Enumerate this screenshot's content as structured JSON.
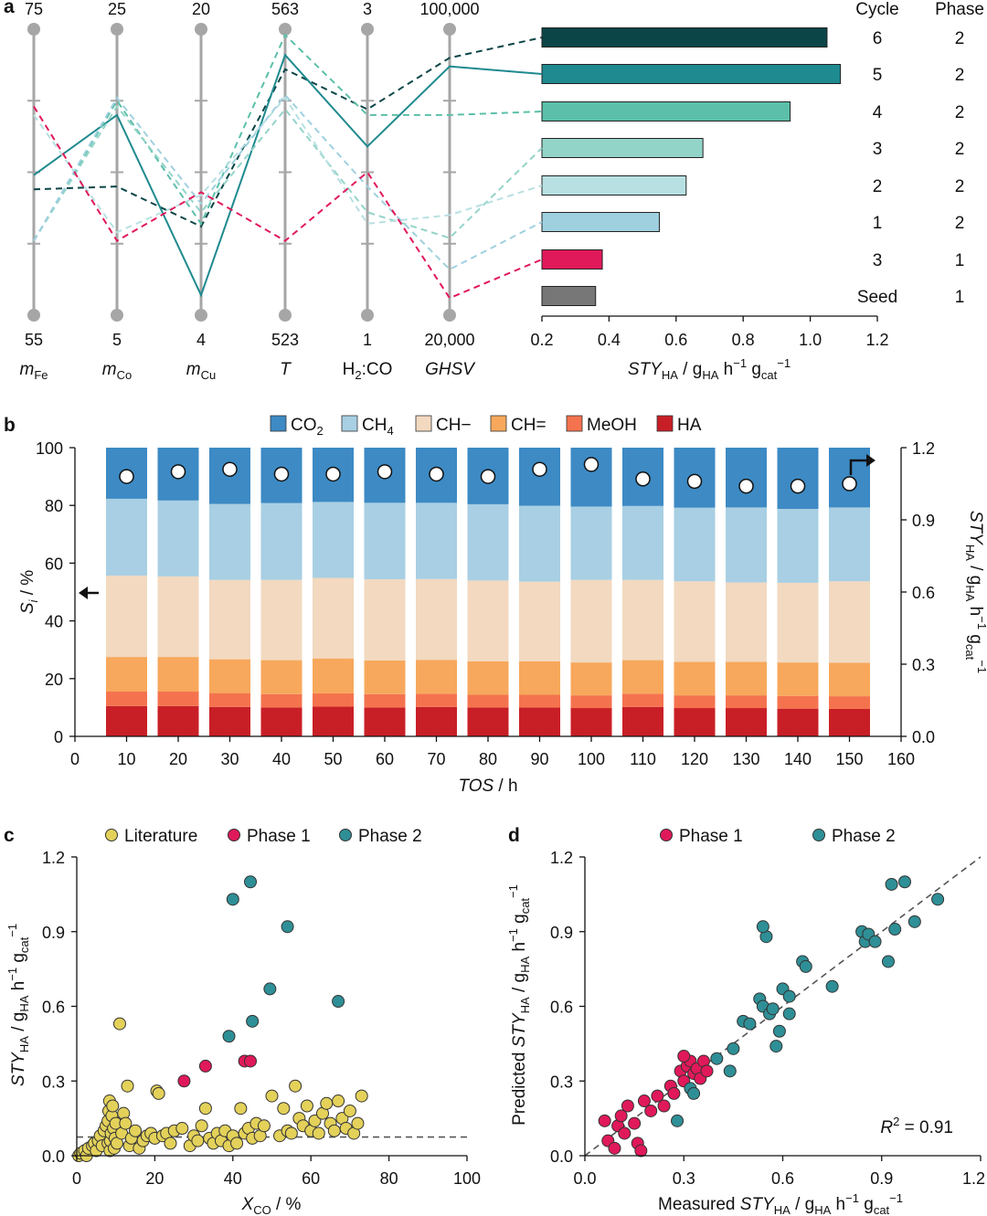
{
  "colors": {
    "axis_gray": "#a6a6a6",
    "phase1": "#e0195a",
    "teal_dark": "#2f8f96",
    "literature": "#e3d15a",
    "dashed_fit": "#555555",
    "seg_CO2": "#3d8ac4",
    "seg_CH4": "#a8cfe3",
    "seg_CHsat": "#f2d9c0",
    "seg_CHunsat": "#f7a85c",
    "seg_MeOH": "#f4734e",
    "seg_HA": "#c81f26"
  },
  "chart_data": [
    {
      "panel": "a",
      "type": "parallel-coordinates+bar",
      "panel_label": "a",
      "axes": [
        {
          "name": "m_Fe",
          "label_main": "m",
          "label_sub": "Fe",
          "italic": true,
          "top": "75",
          "bottom": "55",
          "min": 55,
          "max": 75
        },
        {
          "name": "m_Co",
          "label_main": "m",
          "label_sub": "Co",
          "italic": true,
          "top": "25",
          "bottom": "5",
          "min": 5,
          "max": 25
        },
        {
          "name": "m_Cu",
          "label_main": "m",
          "label_sub": "Cu",
          "italic": true,
          "top": "20",
          "bottom": "4",
          "min": 4,
          "max": 20
        },
        {
          "name": "T",
          "label_main": "T",
          "label_sub": "",
          "italic": true,
          "top": "563",
          "bottom": "523",
          "min": 523,
          "max": 563
        },
        {
          "name": "H2:CO",
          "label_main": "H",
          "label_sub": "2",
          "label_tail": ":CO",
          "italic": false,
          "top": "3",
          "bottom": "1",
          "min": 1,
          "max": 3
        },
        {
          "name": "GHSV",
          "label_main": "GHSV",
          "label_sub": "",
          "italic": true,
          "top": "100,000",
          "bottom": "20,000",
          "min": 20000,
          "max": 100000
        }
      ],
      "lines": [
        {
          "cycle": "6",
          "phase": "2",
          "sty": 1.05,
          "color": "#0c4547",
          "dash": true,
          "norm": [
            0.44,
            0.45,
            0.31,
            0.86,
            0.72,
            0.9
          ]
        },
        {
          "cycle": "5",
          "phase": "2",
          "sty": 1.09,
          "color": "#1f8a8f",
          "dash": false,
          "norm": [
            0.49,
            0.7,
            0.07,
            0.91,
            0.59,
            0.87
          ]
        },
        {
          "cycle": "4",
          "phase": "2",
          "sty": 0.94,
          "color": "#5bbfa9",
          "dash": true,
          "norm": [
            0.26,
            0.75,
            0.32,
            0.98,
            0.7,
            0.7
          ]
        },
        {
          "cycle": "3",
          "phase": "2",
          "sty": 0.68,
          "color": "#93d4c8",
          "dash": true,
          "norm": [
            0.26,
            0.73,
            0.36,
            0.72,
            0.36,
            0.27
          ]
        },
        {
          "cycle": "2",
          "phase": "2",
          "sty": 0.63,
          "color": "#b8e0e2",
          "dash": true,
          "norm": [
            0.7,
            0.29,
            0.42,
            0.76,
            0.32,
            0.35
          ]
        },
        {
          "cycle": "1",
          "phase": "2",
          "sty": 0.55,
          "color": "#9fd0e0",
          "dash": true,
          "norm": [
            0.26,
            0.76,
            0.39,
            0.77,
            0.45,
            0.16
          ]
        },
        {
          "cycle": "3",
          "phase": "1",
          "sty": 0.38,
          "color": "#e0195a",
          "dash": true,
          "norm": [
            0.73,
            0.26,
            0.43,
            0.26,
            0.5,
            0.06
          ]
        },
        {
          "cycle": "Seed",
          "phase": "1",
          "sty": 0.36,
          "color": "#777777",
          "dash": false,
          "norm": null
        }
      ],
      "bar_xlim": [
        0.2,
        1.2
      ],
      "bar_xticks": [
        "0.2",
        "0.4",
        "0.6",
        "0.8",
        "1.0",
        "1.2"
      ],
      "bar_xlabel": {
        "main": "STY",
        "sub": "HA",
        "rest": " / g",
        "sub2": "HA",
        "rest2": " h",
        "sup": "−1",
        "rest3": " g",
        "sub3": "cat",
        "sup2": "−1"
      },
      "col_cycle": "Cycle",
      "col_phase": "Phase"
    },
    {
      "panel": "b",
      "type": "stacked-bar+scatter",
      "panel_label": "b",
      "legend": [
        {
          "key": "CO2",
          "main": "CO",
          "sub": "2",
          "color": "#3d8ac4"
        },
        {
          "key": "CH4",
          "main": "CH",
          "sub": "4",
          "color": "#a8cfe3"
        },
        {
          "key": "CHsat",
          "main": "CH−",
          "sub": "",
          "color": "#f2d9c0"
        },
        {
          "key": "CHunsat",
          "main": "CH=",
          "sub": "",
          "color": "#f7a85c"
        },
        {
          "key": "MeOH",
          "main": "MeOH",
          "sub": "",
          "color": "#f4734e"
        },
        {
          "key": "HA",
          "main": "HA",
          "sub": "",
          "color": "#c81f26"
        }
      ],
      "x": [
        10,
        20,
        30,
        40,
        50,
        60,
        70,
        80,
        90,
        100,
        110,
        120,
        130,
        140,
        150
      ],
      "xlim": [
        0,
        160
      ],
      "xticks": [
        "0",
        "10",
        "20",
        "30",
        "40",
        "50",
        "60",
        "70",
        "80",
        "90",
        "100",
        "110",
        "120",
        "130",
        "140",
        "150",
        "160"
      ],
      "ylim_left": [
        0,
        100
      ],
      "yticks_left": [
        "0",
        "20",
        "40",
        "60",
        "80",
        "100"
      ],
      "ylim_right": [
        0,
        1.2
      ],
      "yticks_right": [
        "0.0",
        "0.3",
        "0.6",
        "0.9",
        "1.2"
      ],
      "xlabel": {
        "main": "TOS",
        "rest": " / h"
      },
      "ylabel_left": {
        "main": "S",
        "sub": "i",
        "rest": " / %"
      },
      "ylabel_right": {
        "main": "STY",
        "sub": "HA",
        "rest": " / g",
        "sub2": "HA",
        "rest2": " h",
        "sup": "−1",
        "rest3": " g",
        "sub3": "cat",
        "sup2": "−1"
      },
      "series": [
        {
          "name": "HA",
          "values": [
            10.5,
            10.5,
            10.2,
            10.0,
            10.3,
            10.0,
            10.2,
            10.0,
            10.0,
            9.8,
            10.2,
            9.8,
            9.8,
            9.6,
            9.5
          ]
        },
        {
          "name": "MeOH",
          "values": [
            5.0,
            5.0,
            4.8,
            4.6,
            4.6,
            4.6,
            4.6,
            4.4,
            4.4,
            4.4,
            4.6,
            4.4,
            4.4,
            4.4,
            4.4
          ]
        },
        {
          "name": "CH=",
          "values": [
            12.0,
            12.0,
            11.7,
            11.8,
            12.1,
            11.7,
            11.7,
            11.6,
            11.6,
            11.4,
            11.6,
            11.6,
            11.6,
            11.6,
            11.6
          ]
        },
        {
          "name": "CH−",
          "values": [
            28.2,
            27.9,
            27.5,
            27.8,
            27.9,
            28.1,
            28.0,
            28.0,
            27.6,
            28.6,
            27.8,
            27.9,
            27.5,
            27.6,
            28.2
          ]
        },
        {
          "name": "CH4",
          "values": [
            26.6,
            26.3,
            26.3,
            26.6,
            26.3,
            26.5,
            26.4,
            26.4,
            26.3,
            25.4,
            25.6,
            25.5,
            26.0,
            25.6,
            25.6
          ]
        },
        {
          "name": "CO2",
          "values": [
            17.7,
            18.3,
            19.5,
            19.2,
            18.8,
            19.1,
            19.1,
            19.6,
            20.1,
            20.4,
            20.2,
            20.8,
            20.7,
            21.2,
            20.7
          ]
        }
      ],
      "sty": [
        1.08,
        1.1,
        1.11,
        1.09,
        1.09,
        1.1,
        1.09,
        1.08,
        1.11,
        1.13,
        1.07,
        1.06,
        1.04,
        1.04,
        1.05
      ]
    },
    {
      "panel": "c",
      "type": "scatter",
      "panel_label": "c",
      "legend": [
        "Literature",
        "Phase 1",
        "Phase 2"
      ],
      "xlim": [
        0,
        100
      ],
      "xticks": [
        "0",
        "20",
        "40",
        "60",
        "80",
        "100"
      ],
      "ylim": [
        0,
        1.2
      ],
      "yticks": [
        "0.0",
        "0.3",
        "0.6",
        "0.9",
        "1.2"
      ],
      "xlabel": {
        "main": "X",
        "sub": "CO",
        "rest": " / %"
      },
      "ylabel": {
        "main": "STY",
        "sub": "HA",
        "rest": " / g",
        "sub2": "HA",
        "rest2": " h",
        "sup": "−1",
        "rest3": " g",
        "sub3": "cat",
        "sup2": "−1"
      },
      "hline": 0.075,
      "phase1": [
        [
          27.5,
          0.3
        ],
        [
          33,
          0.36
        ],
        [
          43,
          0.38
        ],
        [
          44.5,
          0.38
        ]
      ],
      "phase2": [
        [
          39,
          0.48
        ],
        [
          40,
          1.03
        ],
        [
          44.5,
          1.1
        ],
        [
          45,
          0.54
        ],
        [
          54,
          0.92
        ],
        [
          49.5,
          0.67
        ],
        [
          67,
          0.62
        ]
      ],
      "literature": [
        [
          0.5,
          0.0
        ],
        [
          1,
          0.01
        ],
        [
          2,
          0.02
        ],
        [
          2.5,
          0.0
        ],
        [
          3,
          0.03
        ],
        [
          4,
          0.04
        ],
        [
          4.5,
          0.05
        ],
        [
          5,
          0.02
        ],
        [
          5.5,
          0.06
        ],
        [
          6,
          0.08
        ],
        [
          6.5,
          0.04
        ],
        [
          7,
          0.1
        ],
        [
          7.5,
          0.12
        ],
        [
          8,
          0.05
        ],
        [
          8,
          0.14
        ],
        [
          8.2,
          0.18
        ],
        [
          8.4,
          0.22
        ],
        [
          8.5,
          0.02
        ],
        [
          8.6,
          0.06
        ],
        [
          8.8,
          0.09
        ],
        [
          9,
          0.16
        ],
        [
          9.2,
          0.2
        ],
        [
          9.4,
          0.11
        ],
        [
          9.6,
          0.03
        ],
        [
          9.8,
          0.07
        ],
        [
          10,
          0.13
        ],
        [
          10.3,
          0.05
        ],
        [
          11,
          0.53
        ],
        [
          11.5,
          0.09
        ],
        [
          12,
          0.17
        ],
        [
          12.5,
          0.13
        ],
        [
          13,
          0.28
        ],
        [
          13.5,
          0.04
        ],
        [
          14,
          0.07
        ],
        [
          15,
          0.1
        ],
        [
          16,
          0.03
        ],
        [
          17,
          0.06
        ],
        [
          18,
          0.08
        ],
        [
          19,
          0.09
        ],
        [
          20,
          0.07
        ],
        [
          20.5,
          0.26
        ],
        [
          21,
          0.25
        ],
        [
          22,
          0.08
        ],
        [
          23,
          0.09
        ],
        [
          24,
          0.05
        ],
        [
          25,
          0.1
        ],
        [
          27,
          0.11
        ],
        [
          29,
          0.04
        ],
        [
          30,
          0.08
        ],
        [
          31,
          0.06
        ],
        [
          32,
          0.12
        ],
        [
          33,
          0.19
        ],
        [
          34,
          0.07
        ],
        [
          35,
          0.05
        ],
        [
          36,
          0.09
        ],
        [
          37,
          0.06
        ],
        [
          38,
          0.1
        ],
        [
          39,
          0.04
        ],
        [
          40,
          0.08
        ],
        [
          41,
          0.05
        ],
        [
          42,
          0.19
        ],
        [
          43,
          0.09
        ],
        [
          44,
          0.11
        ],
        [
          45,
          0.07
        ],
        [
          46,
          0.13
        ],
        [
          47,
          0.08
        ],
        [
          48,
          0.12
        ],
        [
          50,
          0.24
        ],
        [
          52,
          0.08
        ],
        [
          53,
          0.19
        ],
        [
          54,
          0.1
        ],
        [
          55,
          0.09
        ],
        [
          56,
          0.28
        ],
        [
          57,
          0.15
        ],
        [
          58,
          0.12
        ],
        [
          59,
          0.2
        ],
        [
          60,
          0.1
        ],
        [
          61,
          0.14
        ],
        [
          62,
          0.09
        ],
        [
          63,
          0.17
        ],
        [
          64,
          0.21
        ],
        [
          65,
          0.13
        ],
        [
          66,
          0.1
        ],
        [
          67,
          0.22
        ],
        [
          68,
          0.15
        ],
        [
          69,
          0.11
        ],
        [
          70,
          0.18
        ],
        [
          71,
          0.09
        ],
        [
          72,
          0.13
        ],
        [
          73,
          0.24
        ]
      ]
    },
    {
      "panel": "d",
      "type": "scatter",
      "panel_label": "d",
      "legend": [
        "Phase 1",
        "Phase 2"
      ],
      "xlim": [
        0,
        1.2
      ],
      "xticks": [
        "0.0",
        "0.3",
        "0.6",
        "0.9",
        "1.2"
      ],
      "ylim": [
        0,
        1.2
      ],
      "yticks": [
        "0.0",
        "0.3",
        "0.6",
        "0.9",
        "1.2"
      ],
      "xlabel": {
        "pre": "Measured ",
        "main": "STY",
        "sub": "HA",
        "rest": " / g",
        "sub2": "HA",
        "rest2": " h",
        "sup": "−1",
        "rest3": " g",
        "sub3": "cat",
        "sup2": "−1"
      },
      "ylabel": {
        "pre": "Predicted ",
        "main": "STY",
        "sub": "HA",
        "rest": " / g",
        "sub2": "HA",
        "rest2": " h",
        "sup": "−1",
        "rest3": " g",
        "sub3": "cat",
        "sup2": "−1"
      },
      "r2_main": "R",
      "r2_sup": "2",
      "r2_rest": " = 0.91",
      "fit": [
        [
          0.0,
          0.0
        ],
        [
          1.2,
          1.2
        ]
      ],
      "phase1": [
        [
          0.06,
          0.14
        ],
        [
          0.07,
          0.06
        ],
        [
          0.09,
          0.03
        ],
        [
          0.1,
          0.12
        ],
        [
          0.11,
          0.16
        ],
        [
          0.12,
          0.09
        ],
        [
          0.13,
          0.2
        ],
        [
          0.15,
          0.13
        ],
        [
          0.16,
          0.05
        ],
        [
          0.17,
          0.02
        ],
        [
          0.18,
          0.22
        ],
        [
          0.2,
          0.18
        ],
        [
          0.22,
          0.24
        ],
        [
          0.24,
          0.2
        ],
        [
          0.26,
          0.28
        ],
        [
          0.27,
          0.25
        ],
        [
          0.29,
          0.34
        ],
        [
          0.3,
          0.3
        ],
        [
          0.31,
          0.36
        ],
        [
          0.32,
          0.38
        ],
        [
          0.33,
          0.33
        ],
        [
          0.34,
          0.35
        ],
        [
          0.35,
          0.31
        ],
        [
          0.36,
          0.38
        ],
        [
          0.37,
          0.34
        ],
        [
          0.3,
          0.4
        ]
      ],
      "phase2": [
        [
          0.28,
          0.14
        ],
        [
          0.32,
          0.27
        ],
        [
          0.33,
          0.25
        ],
        [
          0.4,
          0.39
        ],
        [
          0.44,
          0.34
        ],
        [
          0.45,
          0.43
        ],
        [
          0.48,
          0.54
        ],
        [
          0.5,
          0.53
        ],
        [
          0.53,
          0.63
        ],
        [
          0.54,
          0.6
        ],
        [
          0.55,
          0.88
        ],
        [
          0.54,
          0.92
        ],
        [
          0.56,
          0.57
        ],
        [
          0.57,
          0.59
        ],
        [
          0.58,
          0.44
        ],
        [
          0.59,
          0.5
        ],
        [
          0.6,
          0.67
        ],
        [
          0.62,
          0.64
        ],
        [
          0.62,
          0.57
        ],
        [
          0.66,
          0.78
        ],
        [
          0.67,
          0.76
        ],
        [
          0.75,
          0.68
        ],
        [
          0.84,
          0.9
        ],
        [
          0.85,
          0.86
        ],
        [
          0.86,
          0.89
        ],
        [
          0.88,
          0.86
        ],
        [
          0.92,
          0.78
        ],
        [
          0.93,
          1.09
        ],
        [
          0.94,
          0.91
        ],
        [
          0.97,
          1.1
        ],
        [
          1.0,
          0.94
        ],
        [
          1.07,
          1.03
        ]
      ]
    }
  ]
}
